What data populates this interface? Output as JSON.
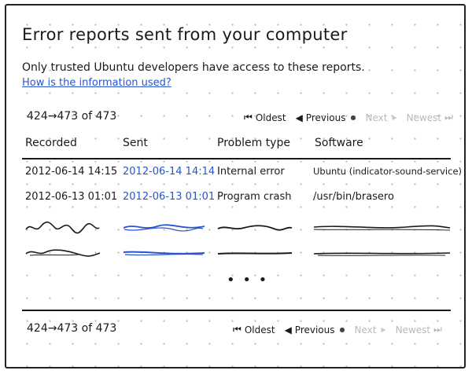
{
  "title": "Error reports sent from your computer",
  "subtitle": "Only trusted Ubuntu developers have access to these reports.",
  "info_link": "How is the information used?",
  "pagination": {
    "range_text": "424→473 of 473",
    "oldest": "Oldest",
    "previous": "Previous",
    "next": "Next",
    "newest": "Newest"
  },
  "table": {
    "columns": [
      "Recorded",
      "Sent",
      "Problem type",
      "Software"
    ],
    "rows": [
      {
        "recorded": "2012-06-14 14:15",
        "sent": "2012-06-14 14:14",
        "problem_type": "Internal error",
        "software": "Ubuntu (indicator-sound-service)"
      },
      {
        "recorded": "2012-06-13 01:01",
        "sent": "2012-06-13 01:01",
        "problem_type": "Program crash",
        "software": "/usr/bin/brasero"
      }
    ],
    "more_indicator": "• • •"
  },
  "colors": {
    "link": "#2a55c8",
    "disabled": "#b8b8b8",
    "ink": "#1a1a1a"
  },
  "icons": {
    "oldest": "skip-to-start-icon",
    "previous": "triangle-left-icon",
    "next": "triangle-right-icon",
    "newest": "skip-to-end-icon"
  }
}
